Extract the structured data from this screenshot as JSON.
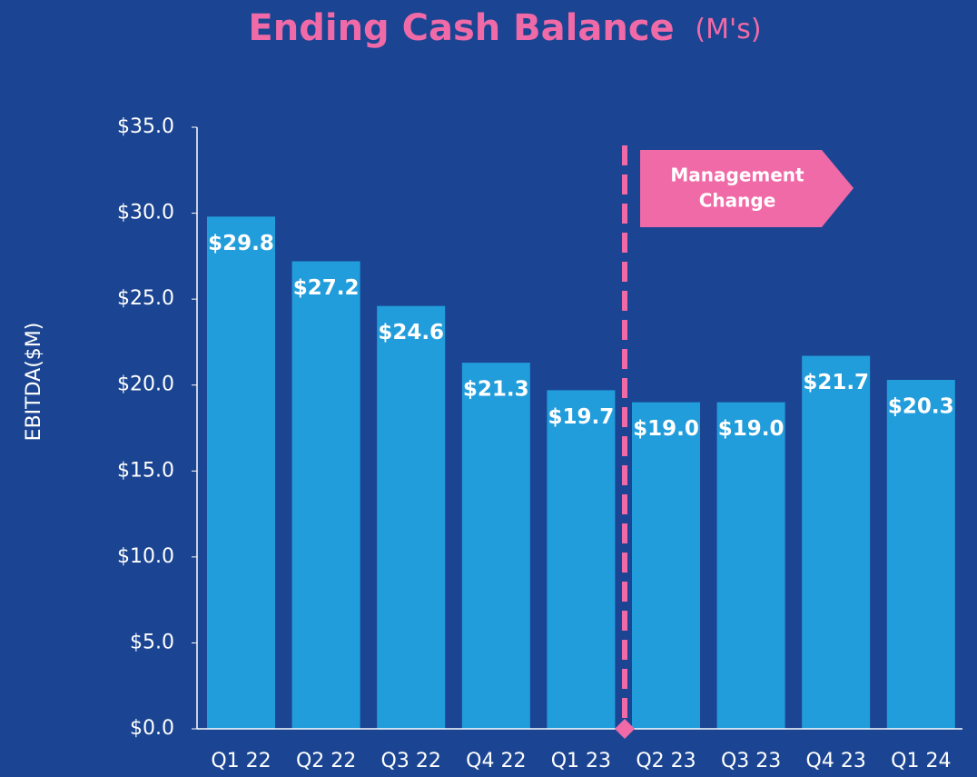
{
  "chart_data": {
    "type": "bar",
    "title": "Ending Cash Balance",
    "title_unit": "(M's)",
    "y_label": "EBITDA($M)",
    "annotation": [
      "Management",
      "Change"
    ],
    "categories": [
      "Q1 22",
      "Q2 22",
      "Q3 22",
      "Q4 22",
      "Q1 23",
      "Q2 23",
      "Q3 23",
      "Q4 23",
      "Q1 24"
    ],
    "values": [
      29.8,
      27.2,
      24.6,
      21.3,
      19.7,
      19.0,
      19.0,
      21.7,
      20.3
    ],
    "value_labels": [
      "$29.8",
      "$27.2",
      "$24.6",
      "$21.3",
      "$19.7",
      "$19.0",
      "$19.0",
      "$21.7",
      "$20.3"
    ],
    "color": "#229ddb",
    "ylim": [
      0,
      35
    ],
    "yticks": [
      {
        "value": 0,
        "label": "$0.0"
      },
      {
        "value": 5,
        "label": "$5.0"
      },
      {
        "value": 10,
        "label": "$10.0"
      },
      {
        "value": 15,
        "label": "$15.0"
      },
      {
        "value": 20,
        "label": "$20.0"
      },
      {
        "value": 25,
        "label": "$25.0"
      },
      {
        "value": 30,
        "label": "$30.0"
      },
      {
        "value": 35,
        "label": "$35.0"
      }
    ],
    "grid": false
  }
}
